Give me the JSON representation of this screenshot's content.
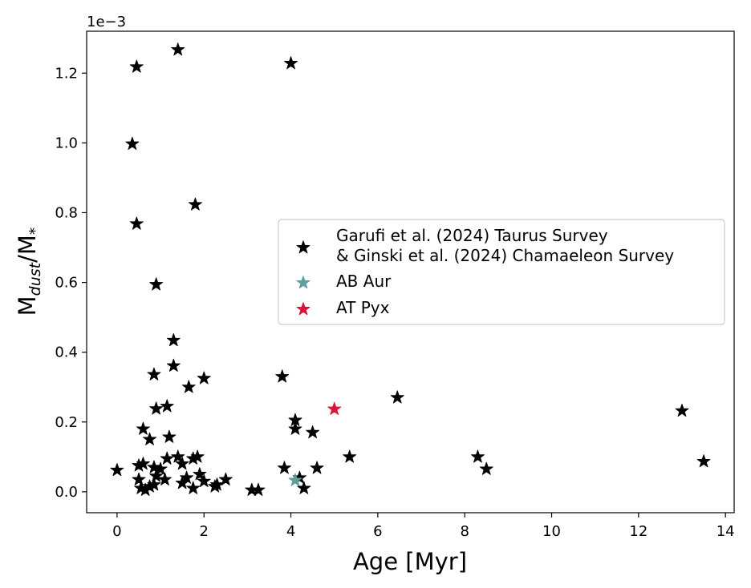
{
  "chart_data": {
    "type": "scatter",
    "title": "",
    "xlabel": "Age [Myr]",
    "ylabel": {
      "base": "M",
      "sub": "dust",
      "mid": "/M",
      "star": "*"
    },
    "y_offset_text": "1e−3",
    "xlim": [
      -0.7,
      14.2
    ],
    "ylim": [
      -0.06,
      1.32
    ],
    "xticks": [
      0,
      2,
      4,
      6,
      8,
      10,
      12,
      14
    ],
    "xtick_labels": [
      "0",
      "2",
      "4",
      "6",
      "8",
      "10",
      "12",
      "14"
    ],
    "yticks": [
      0.0,
      0.2,
      0.4,
      0.6,
      0.8,
      1.0,
      1.2
    ],
    "ytick_labels": [
      "0.0",
      "0.2",
      "0.4",
      "0.6",
      "0.8",
      "1.0",
      "1.2"
    ],
    "grid": false,
    "legend_position": "center-right",
    "series": [
      {
        "name": "Garufi et al. (2024) Taurus Survey\n& Ginski et al. (2024) Chamaeleon Survey",
        "name_lines": [
          "Garufi et al. (2024) Taurus Survey",
          "& Ginski et al. (2024) Chamaeleon Survey"
        ],
        "color": "#000000",
        "marker": "star",
        "points": [
          [
            0.0,
            0.062
          ],
          [
            0.45,
            1.218
          ],
          [
            1.4,
            1.267
          ],
          [
            4.0,
            1.228
          ],
          [
            0.35,
            0.997
          ],
          [
            0.45,
            0.768
          ],
          [
            1.8,
            0.823
          ],
          [
            0.9,
            0.594
          ],
          [
            1.3,
            0.434
          ],
          [
            1.3,
            0.361
          ],
          [
            0.85,
            0.336
          ],
          [
            1.65,
            0.3
          ],
          [
            2.0,
            0.325
          ],
          [
            3.8,
            0.33
          ],
          [
            0.9,
            0.238
          ],
          [
            1.15,
            0.245
          ],
          [
            0.6,
            0.18
          ],
          [
            0.75,
            0.15
          ],
          [
            1.2,
            0.157
          ],
          [
            4.1,
            0.205
          ],
          [
            4.1,
            0.18
          ],
          [
            4.5,
            0.17
          ],
          [
            6.45,
            0.27
          ],
          [
            13.0,
            0.232
          ],
          [
            0.5,
            0.075
          ],
          [
            0.6,
            0.08
          ],
          [
            0.5,
            0.035
          ],
          [
            0.55,
            0.01
          ],
          [
            0.65,
            0.005
          ],
          [
            0.75,
            0.015
          ],
          [
            0.85,
            0.02
          ],
          [
            0.85,
            0.07
          ],
          [
            0.9,
            0.045
          ],
          [
            1.0,
            0.065
          ],
          [
            1.1,
            0.035
          ],
          [
            1.15,
            0.095
          ],
          [
            1.4,
            0.1
          ],
          [
            1.5,
            0.08
          ],
          [
            1.5,
            0.025
          ],
          [
            1.6,
            0.04
          ],
          [
            1.75,
            0.095
          ],
          [
            1.75,
            0.01
          ],
          [
            1.85,
            0.1
          ],
          [
            1.9,
            0.05
          ],
          [
            2.0,
            0.03
          ],
          [
            2.25,
            0.015
          ],
          [
            2.3,
            0.02
          ],
          [
            2.5,
            0.035
          ],
          [
            3.1,
            0.005
          ],
          [
            3.25,
            0.005
          ],
          [
            3.85,
            0.068
          ],
          [
            4.2,
            0.04
          ],
          [
            4.3,
            0.01
          ],
          [
            4.6,
            0.068
          ],
          [
            5.35,
            0.1
          ],
          [
            8.3,
            0.1
          ],
          [
            8.5,
            0.065
          ],
          [
            13.5,
            0.087
          ]
        ]
      },
      {
        "name": "AB Aur",
        "color": "#5f9ea0",
        "marker": "star",
        "points": [
          [
            4.1,
            0.033
          ]
        ]
      },
      {
        "name": "AT Pyx",
        "color": "#dc143c",
        "marker": "star",
        "points": [
          [
            5.0,
            0.237
          ]
        ]
      }
    ]
  }
}
